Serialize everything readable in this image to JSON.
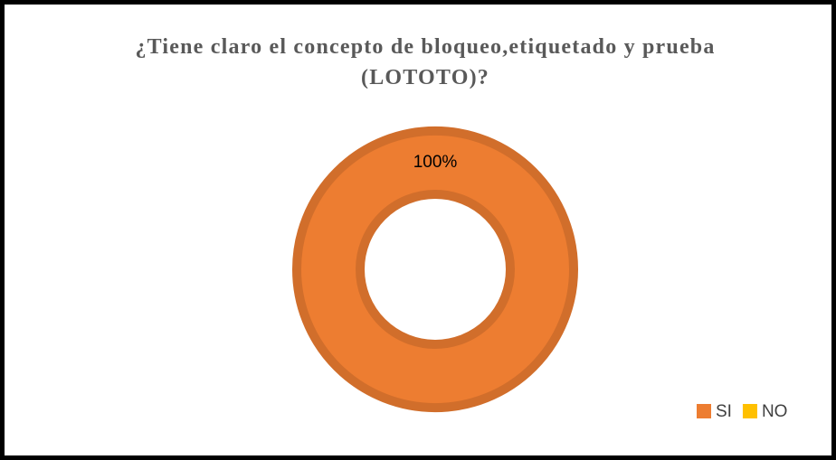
{
  "chart_data": {
    "type": "donut",
    "title": "¿Tiene claro el concepto de bloqueo,etiquetado y prueba (LOTOTO)?",
    "categories": [
      "SI",
      "NO"
    ],
    "values": [
      100,
      0
    ],
    "value_labels": [
      "100%",
      null
    ],
    "colors": [
      "#ed7d31",
      "#ffc000"
    ],
    "legend": "bottom-right"
  }
}
